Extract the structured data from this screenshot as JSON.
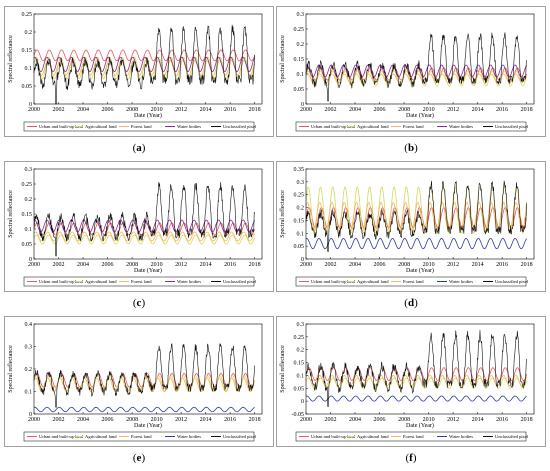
{
  "chart_data": [
    {
      "panel": "(a)",
      "type": "line",
      "xlabel": "Date (Year)",
      "ylabel": "Spectral reflectance",
      "xlim": [
        2000,
        2018.6
      ],
      "ylim": [
        0,
        0.25
      ],
      "xticks": [
        "2000",
        "2002",
        "2004",
        "2006",
        "2008",
        "2010",
        "2012",
        "2014",
        "2016",
        "2018"
      ],
      "yticks": [
        "0",
        "0.05",
        "0.1",
        "0.15",
        "0.2",
        "0.25"
      ],
      "legend_position": "bottom",
      "series": [
        {
          "name": "Urban and built-up land",
          "color": "#e8595e",
          "min": 0.12,
          "max": 0.15
        },
        {
          "name": "Agricultural land",
          "color": "#d7d85f",
          "min": 0.07,
          "max": 0.13
        },
        {
          "name": "Forest land",
          "color": "#f2b85b",
          "min": 0.08,
          "max": 0.12
        },
        {
          "name": "Water bodies",
          "color": "#8a2a98",
          "min": 0.09,
          "max": 0.13
        },
        {
          "name": "Unclassified pixel",
          "color": "#111111",
          "min": 0.0,
          "max": 0.24
        }
      ]
    },
    {
      "panel": "(b)",
      "type": "line",
      "xlabel": "Date (Year)",
      "ylabel": "Spectral reflectance",
      "xlim": [
        2000,
        2018.6
      ],
      "ylim": [
        0,
        0.3
      ],
      "xticks": [
        "2000",
        "2002",
        "2004",
        "2006",
        "2008",
        "2010",
        "2012",
        "2014",
        "2016",
        "2018"
      ],
      "yticks": [
        "0",
        "0.05",
        "0.1",
        "0.15",
        "0.2",
        "0.25",
        "0.3"
      ],
      "legend_position": "bottom",
      "series": [
        {
          "name": "Urban and built-up land",
          "color": "#e8595e",
          "min": 0.08,
          "max": 0.12
        },
        {
          "name": "Agricultural land",
          "color": "#d7d85f",
          "min": 0.06,
          "max": 0.11
        },
        {
          "name": "Forest land",
          "color": "#f2b85b",
          "min": 0.07,
          "max": 0.1
        },
        {
          "name": "Water bodies",
          "color": "#8a2a98",
          "min": 0.09,
          "max": 0.13
        },
        {
          "name": "Unclassified pixel",
          "color": "#111111",
          "min": 0.01,
          "max": 0.26
        }
      ]
    },
    {
      "panel": "(c)",
      "type": "line",
      "xlabel": "Date (Year)",
      "ylabel": "Spectral reflectance",
      "xlim": [
        2000,
        2018.6
      ],
      "ylim": [
        0,
        0.3
      ],
      "xticks": [
        "2000",
        "2002",
        "2004",
        "2006",
        "2008",
        "2010",
        "2012",
        "2014",
        "2016",
        "2018"
      ],
      "yticks": [
        "0",
        "0.05",
        "0.1",
        "0.15",
        "0.2",
        "0.25",
        "0.3"
      ],
      "legend_position": "bottom",
      "series": [
        {
          "name": "Urban and built-up land",
          "color": "#e8595e",
          "min": 0.08,
          "max": 0.12
        },
        {
          "name": "Agricultural land",
          "color": "#d7d85f",
          "min": 0.05,
          "max": 0.08
        },
        {
          "name": "Forest land",
          "color": "#f2b85b",
          "min": 0.06,
          "max": 0.09
        },
        {
          "name": "Water bodies",
          "color": "#8a2a98",
          "min": 0.09,
          "max": 0.13
        },
        {
          "name": "Unclassified pixel",
          "color": "#111111",
          "min": 0.01,
          "max": 0.28
        }
      ]
    },
    {
      "panel": "(d)",
      "type": "line",
      "xlabel": "Date (Year)",
      "ylabel": "Spectral reflectance",
      "xlim": [
        2000,
        2018.6
      ],
      "ylim": [
        0,
        0.35
      ],
      "xticks": [
        "2000",
        "2002",
        "2004",
        "2006",
        "2008",
        "2010",
        "2012",
        "2014",
        "2016",
        "2018"
      ],
      "yticks": [
        "0",
        "0.05",
        "0.1",
        "0.15",
        "0.2",
        "0.25",
        "0.3",
        "0.35"
      ],
      "legend_position": "bottom",
      "series": [
        {
          "name": "Urban and built-up land",
          "color": "#e8595e",
          "min": 0.12,
          "max": 0.2
        },
        {
          "name": "Agricultural land",
          "color": "#d7d85f",
          "min": 0.1,
          "max": 0.28
        },
        {
          "name": "Forest land",
          "color": "#f2b85b",
          "min": 0.11,
          "max": 0.22
        },
        {
          "name": "Water bodies",
          "color": "#2c3aa0",
          "min": 0.04,
          "max": 0.08
        },
        {
          "name": "Unclassified pixel",
          "color": "#111111",
          "min": 0.03,
          "max": 0.33
        }
      ]
    },
    {
      "panel": "(e)",
      "type": "line",
      "xlabel": "Date (Year)",
      "ylabel": "Spectral reflectance",
      "xlim": [
        2000,
        2018.6
      ],
      "ylim": [
        0,
        0.4
      ],
      "xticks": [
        "2000",
        "2002",
        "2004",
        "2006",
        "2008",
        "2010",
        "2012",
        "2014",
        "2016",
        "2018"
      ],
      "yticks": [
        "0",
        "0.1",
        "0.2",
        "0.3",
        "0.4"
      ],
      "legend_position": "bottom",
      "series": [
        {
          "name": "Urban and built-up land",
          "color": "#e8595e",
          "min": 0.12,
          "max": 0.18
        },
        {
          "name": "Agricultural land",
          "color": "#d7d85f",
          "min": 0.1,
          "max": 0.17
        },
        {
          "name": "Forest land",
          "color": "#f2b85b",
          "min": 0.1,
          "max": 0.16
        },
        {
          "name": "Water bodies",
          "color": "#2c3aa0",
          "min": 0.01,
          "max": 0.03
        },
        {
          "name": "Unclassified pixel",
          "color": "#111111",
          "min": 0.03,
          "max": 0.34
        }
      ]
    },
    {
      "panel": "(f)",
      "type": "line",
      "xlabel": "Date (Year)",
      "ylabel": "Spectral reflectance",
      "xlim": [
        2000,
        2018.6
      ],
      "ylim": [
        -0.05,
        0.3
      ],
      "xticks": [
        "2000",
        "2002",
        "2004",
        "2006",
        "2008",
        "2010",
        "2012",
        "2014",
        "2016",
        "2018"
      ],
      "yticks": [
        "-0.05",
        "0",
        "0.05",
        "0.1",
        "0.15",
        "0.2",
        "0.25",
        "0.3"
      ],
      "legend_position": "bottom",
      "series": [
        {
          "name": "Urban and built-up land",
          "color": "#e8595e",
          "min": 0.08,
          "max": 0.13
        },
        {
          "name": "Agricultural land",
          "color": "#d7d85f",
          "min": 0.05,
          "max": 0.09
        },
        {
          "name": "Forest land",
          "color": "#f2b85b",
          "min": 0.06,
          "max": 0.1
        },
        {
          "name": "Water bodies",
          "color": "#2c3aa0",
          "min": 0.0,
          "max": 0.02
        },
        {
          "name": "Unclassified pixel",
          "color": "#111111",
          "min": -0.02,
          "max": 0.3
        }
      ]
    }
  ]
}
